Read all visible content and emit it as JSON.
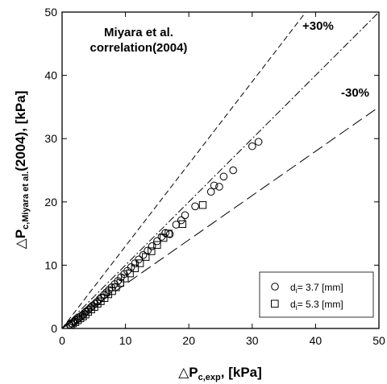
{
  "chart_data": {
    "type": "scatter",
    "title_lines": [
      "Miyara et al.",
      "correlation(2004)"
    ],
    "xlabel": {
      "delta": "△P",
      "sub": "c,exp",
      "rest": ", [kPa]"
    },
    "ylabel": {
      "delta": "△P",
      "sub": "c,Miyara et al.",
      "rest": "(2004), [kPa]"
    },
    "xlim": [
      0,
      50
    ],
    "ylim": [
      0,
      50
    ],
    "xticks": [
      0,
      10,
      20,
      30,
      40,
      50
    ],
    "yticks": [
      0,
      10,
      20,
      30,
      40,
      50
    ],
    "grid": false,
    "reference_lines": [
      {
        "label": "+30%",
        "slope": 1.3,
        "style": "dashed"
      },
      {
        "label": "",
        "slope": 1.0,
        "style": "dash-dot"
      },
      {
        "label": "-30%",
        "slope": 0.7,
        "style": "long-dash"
      }
    ],
    "legend_position": "bottom-right",
    "series": [
      {
        "name": "d",
        "name_sub": "i",
        "name_rest": "= 3.7 [mm]",
        "marker": "circle",
        "points": [
          [
            1.2,
            0.6
          ],
          [
            1.5,
            0.8
          ],
          [
            1.8,
            1.0
          ],
          [
            2.0,
            1.1
          ],
          [
            2.3,
            1.4
          ],
          [
            2.6,
            1.6
          ],
          [
            2.9,
            1.9
          ],
          [
            3.2,
            2.1
          ],
          [
            3.5,
            2.4
          ],
          [
            3.8,
            2.7
          ],
          [
            4.2,
            3.0
          ],
          [
            4.5,
            3.3
          ],
          [
            4.8,
            3.6
          ],
          [
            5.2,
            3.9
          ],
          [
            5.5,
            4.2
          ],
          [
            5.9,
            4.6
          ],
          [
            6.2,
            4.9
          ],
          [
            6.6,
            5.3
          ],
          [
            7.0,
            5.7
          ],
          [
            7.4,
            6.1
          ],
          [
            7.8,
            6.5
          ],
          [
            8.3,
            7.0
          ],
          [
            8.8,
            7.5
          ],
          [
            9.3,
            8.1
          ],
          [
            9.8,
            8.6
          ],
          [
            10.3,
            9.1
          ],
          [
            10.9,
            9.7
          ],
          [
            11.5,
            10.3
          ],
          [
            12.1,
            10.9
          ],
          [
            12.8,
            11.6
          ],
          [
            13.5,
            12.3
          ],
          [
            14.2,
            13.0
          ],
          [
            15.0,
            13.8
          ],
          [
            15.7,
            14.5
          ],
          [
            16.3,
            15.1
          ],
          [
            17.0,
            14.9
          ],
          [
            18.0,
            16.4
          ],
          [
            18.8,
            17.1
          ],
          [
            19.4,
            17.9
          ],
          [
            21.0,
            19.3
          ],
          [
            23.5,
            21.6
          ],
          [
            24.0,
            22.6
          ],
          [
            24.8,
            22.4
          ],
          [
            25.5,
            24.0
          ],
          [
            27.0,
            25.0
          ],
          [
            30.0,
            28.8
          ],
          [
            31.0,
            29.5
          ]
        ]
      },
      {
        "name": "d",
        "name_sub": "i",
        "name_rest": "= 5.3 [mm]",
        "marker": "square",
        "points": [
          [
            1.4,
            0.6
          ],
          [
            1.7,
            0.8
          ],
          [
            2.1,
            1.0
          ],
          [
            2.5,
            1.3
          ],
          [
            2.9,
            1.6
          ],
          [
            3.3,
            1.9
          ],
          [
            3.7,
            2.2
          ],
          [
            4.1,
            2.6
          ],
          [
            4.6,
            3.0
          ],
          [
            5.1,
            3.4
          ],
          [
            5.6,
            3.9
          ],
          [
            6.1,
            4.3
          ],
          [
            6.7,
            4.8
          ],
          [
            7.3,
            5.4
          ],
          [
            7.9,
            5.9
          ],
          [
            8.5,
            6.5
          ],
          [
            9.2,
            7.2
          ],
          [
            9.9,
            7.9
          ],
          [
            10.7,
            8.7
          ],
          [
            11.5,
            9.5
          ],
          [
            12.3,
            10.3
          ],
          [
            13.2,
            11.3
          ],
          [
            14.1,
            12.2
          ],
          [
            15.0,
            13.2
          ],
          [
            16.0,
            14.3
          ],
          [
            16.8,
            15.0
          ],
          [
            19.0,
            16.5
          ],
          [
            22.2,
            19.5
          ]
        ]
      }
    ]
  }
}
